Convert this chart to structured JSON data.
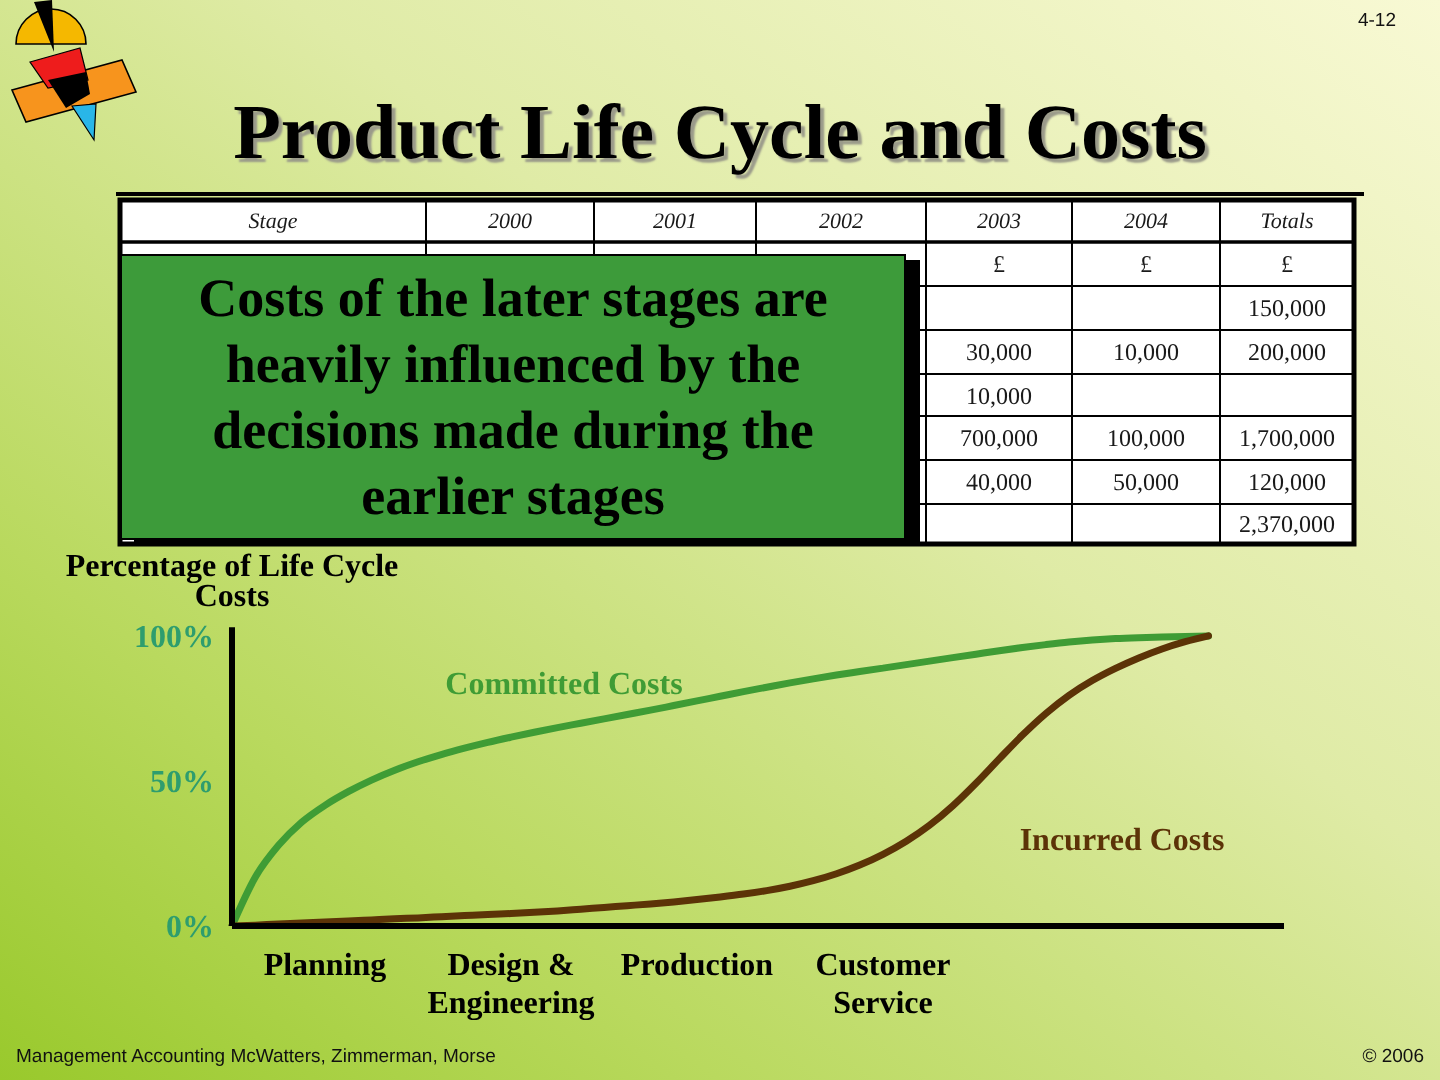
{
  "chart_data": {
    "type": "line",
    "title": "Product Life Cycle and Costs",
    "ylabel": "Percentage of Life Cycle Costs",
    "categories": [
      null,
      null,
      null,
      null,
      "Planning",
      null,
      null,
      null,
      null,
      null,
      null,
      null,
      "Design & Engineering",
      null,
      null,
      null,
      null,
      null,
      null,
      null,
      "Production",
      null,
      null,
      null,
      null,
      null,
      null,
      null,
      "Customer Service",
      null,
      null,
      null,
      null,
      null,
      null,
      null,
      null,
      null,
      null,
      null,
      null,
      null,
      null
    ],
    "ylim": [
      0,
      103
    ],
    "yticks": [
      {
        "value": 0,
        "label": "0%"
      },
      {
        "value": 50,
        "label": "50%"
      },
      {
        "value": 100,
        "label": "100%"
      }
    ],
    "marker": "none",
    "line_style": "solid",
    "series": [
      {
        "name": "Committed Costs",
        "color": "#3f9c35",
        "values": [
          0,
          16.8,
          27.8,
          35.8,
          41.6,
          46.3,
          50.3,
          53.7,
          56.6,
          59.1,
          61.3,
          63.3,
          65.1,
          66.8,
          68.4,
          69.9,
          71.4,
          72.9,
          74.4,
          76,
          77.6,
          79.2,
          80.8,
          82.3,
          83.8,
          85.2,
          86.5,
          87.7,
          88.9,
          90.1,
          91.3,
          92.5,
          93.7,
          94.9,
          96,
          97,
          97.9,
          98.6,
          99.1,
          99.4,
          99.6,
          99.8,
          100
        ]
      },
      {
        "name": "Incurred Costs",
        "color": "#5c3307",
        "values": [
          0,
          0.3,
          0.7,
          1,
          1.4,
          1.7,
          2.1,
          2.5,
          2.8,
          3.2,
          3.6,
          4,
          4.3,
          4.7,
          5.2,
          5.8,
          6.4,
          7,
          7.6,
          8.3,
          9.1,
          10,
          11,
          12.2,
          13.7,
          15.6,
          18,
          21,
          24.7,
          29.2,
          34.7,
          41.4,
          49.2,
          57.6,
          65.8,
          73.2,
          79.5,
          84.6,
          88.8,
          92.4,
          95.5,
          98,
          100
        ]
      }
    ],
    "annotations": [
      "4-12",
      "Stage",
      "2000",
      "2001",
      "2002",
      "2003",
      "2004",
      "Totals",
      "£",
      "£",
      "£",
      "150,000",
      "30,000",
      "10,000",
      "200,000",
      "10,000",
      "700,000",
      "100,000",
      "1,700,000",
      "40,000",
      "50,000",
      "120,000",
      "2,370,000",
      "Costs of the later stages are heavily influenced by the decisions made during the earlier stages",
      "Management Accounting McWatters, Zimmerman, Morse",
      "© 2006"
    ]
  }
}
